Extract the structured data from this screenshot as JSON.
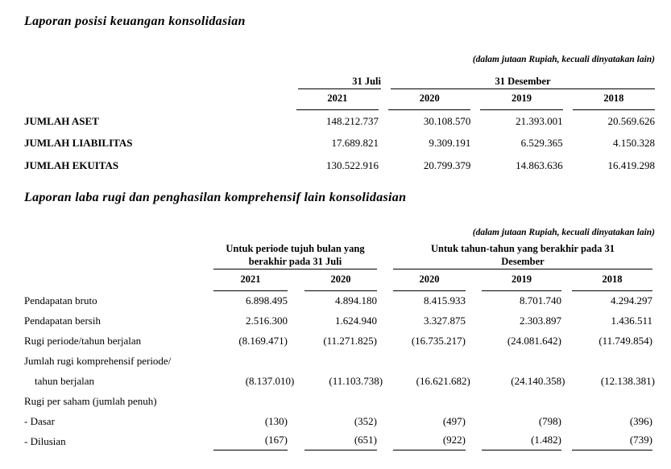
{
  "page": {
    "background": "#ffffff",
    "text_color": "#000000",
    "rule_color": "#000000"
  },
  "section1": {
    "title": "Laporan posisi keuangan konsolidasian",
    "unit_note": "(dalam jutaan Rupiah, kecuali dinyatakan lain)",
    "table": {
      "type": "table",
      "group_headers": [
        {
          "label": "31 Juli",
          "span": 1
        },
        {
          "label": "31 Desember",
          "span": 3
        }
      ],
      "year_columns": [
        "2021",
        "2020",
        "2019",
        "2018"
      ],
      "rows": [
        {
          "label": "JUMLAH ASET",
          "values": [
            "148.212.737",
            "30.108.570",
            "21.393.001",
            "20.569.626"
          ]
        },
        {
          "label": "JUMLAH LIABILITAS",
          "values": [
            "17.689.821",
            "9.309.191",
            "6.529.365",
            "4.150.328"
          ]
        },
        {
          "label": "JUMLAH EKUITAS",
          "values": [
            "130.522.916",
            "20.799.379",
            "14.863.636",
            "16.419.298"
          ]
        }
      ]
    }
  },
  "section2": {
    "title": "Laporan laba rugi dan penghasilan komprehensif lain konsolidasian",
    "unit_note": "(dalam jutaan Rupiah, kecuali dinyatakan lain)",
    "table": {
      "type": "table",
      "group_headers": [
        {
          "label": "Untuk periode tujuh bulan yang berakhir pada 31 Juli",
          "span": 2
        },
        {
          "label": "Untuk tahun-tahun yang berakhir pada 31 Desember",
          "span": 3
        }
      ],
      "year_columns": [
        "2021",
        "2020",
        "2020",
        "2019",
        "2018"
      ],
      "rows": [
        {
          "label": "Pendapatan bruto",
          "values": [
            "6.898.495",
            "4.894.180",
            "8.415.933",
            "8.701.740",
            "4.294.297"
          ]
        },
        {
          "label": "Pendapatan bersih",
          "values": [
            "2.516.300",
            "1.624.940",
            "3.327.875",
            "2.303.897",
            "1.436.511"
          ]
        },
        {
          "label": "Rugi periode/tahun berjalan",
          "values": [
            "(8.169.471)",
            "(11.271.825)",
            "(16.735.217)",
            "(24.081.642)",
            "(11.749.854)"
          ]
        },
        {
          "label": "Jumlah rugi komprehensif periode/",
          "values": []
        },
        {
          "label": "tahun berjalan",
          "indent": true,
          "values": [
            "(8.137.010)",
            "(11.103.738)",
            "(16.621.682)",
            "(24.140.358)",
            "(12.138.381)"
          ]
        },
        {
          "label": "Rugi per saham (jumlah penuh)",
          "values": []
        },
        {
          "label": "- Dasar",
          "values": [
            "(130)",
            "(352)",
            "(497)",
            "(798)",
            "(396)"
          ]
        },
        {
          "label": "- Dilusian",
          "values": [
            "(167)",
            "(651)",
            "(922)",
            "(1.482)",
            "(739)"
          ]
        }
      ]
    }
  }
}
